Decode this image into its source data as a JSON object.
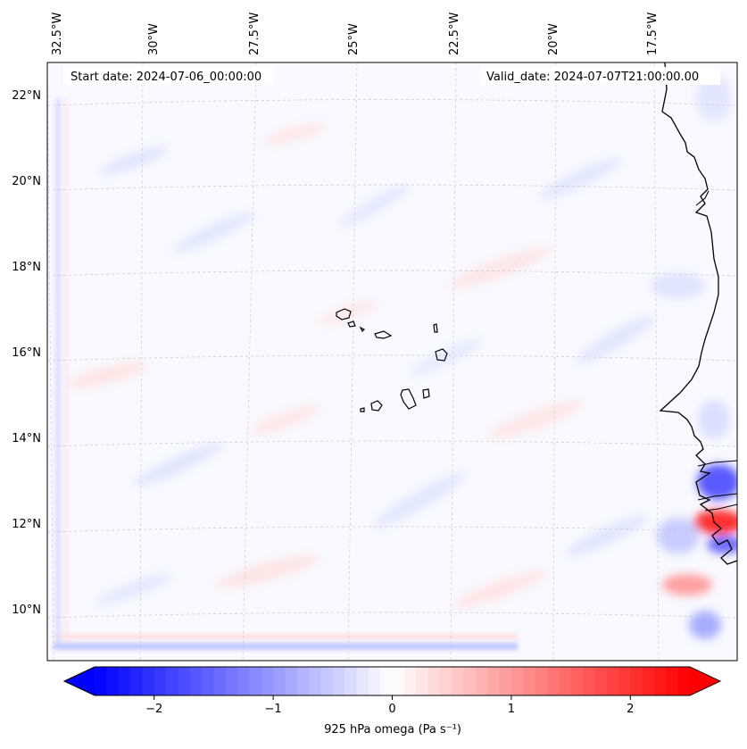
{
  "map": {
    "start_label": "Start date: 2024-07-06_00:00:00",
    "valid_label": "Valid_date: 2024-07-07T21:00:00.00",
    "lon_labels": [
      "32.5°W",
      "30°W",
      "27.5°W",
      "25°W",
      "22.5°W",
      "20°W",
      "17.5°W"
    ],
    "lat_labels": [
      "22°N",
      "20°N",
      "18°N",
      "16°N",
      "14°N",
      "12°N",
      "10°N"
    ],
    "field": "925 hPa omega",
    "islands": "Cape Verde",
    "coastline": "West Africa (Senegal, Gambia, Guinea-Bissau)"
  },
  "colorbar": {
    "label": "925 hPa omega (Pa s⁻¹)",
    "ticks": [
      "−2",
      "−1",
      "0",
      "1",
      "2"
    ],
    "min": -2.75,
    "max": 2.75,
    "colors": {
      "negative": "#0000ff",
      "zero": "#ffffff",
      "positive": "#ff0000"
    }
  }
}
